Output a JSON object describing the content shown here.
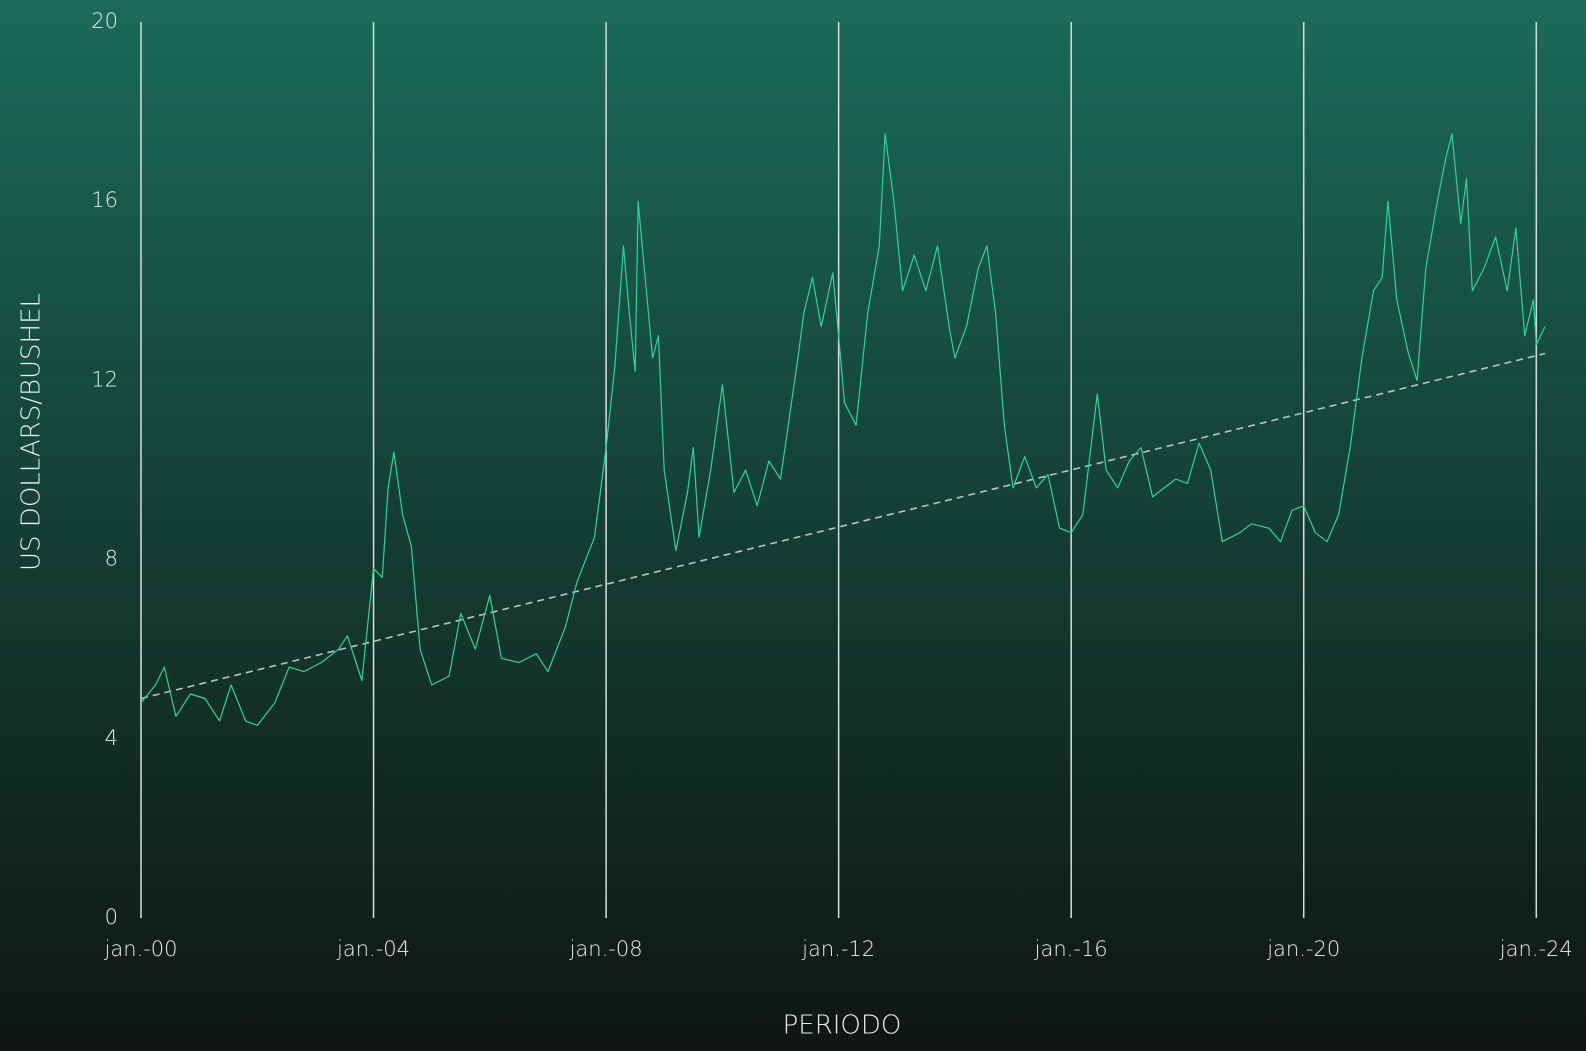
{
  "chart_data": {
    "type": "line",
    "y_label": "US DOLLARS/BUSHEL",
    "x_label": "PERIODO",
    "xlim": [
      2000,
      2024.15
    ],
    "ylim": [
      0,
      20
    ],
    "yticks": [
      0,
      4,
      8,
      12,
      16,
      20
    ],
    "xticks": [
      {
        "value": 2000,
        "label": "jan.-00"
      },
      {
        "value": 2004,
        "label": "jan.-04"
      },
      {
        "value": 2008,
        "label": "jan.-08"
      },
      {
        "value": 2012,
        "label": "jan.-12"
      },
      {
        "value": 2016,
        "label": "jan.-16"
      },
      {
        "value": 2020,
        "label": "jan.-20"
      },
      {
        "value": 2024,
        "label": "jan.-24"
      }
    ],
    "grid": "x",
    "x": [
      2000.0,
      2000.25,
      2000.4,
      2000.6,
      2000.85,
      2001.1,
      2001.35,
      2001.55,
      2001.8,
      2002.0,
      2002.3,
      2002.55,
      2002.8,
      2003.1,
      2003.4,
      2003.55,
      2003.8,
      2004.0,
      2004.15,
      2004.25,
      2004.35,
      2004.5,
      2004.65,
      2004.8,
      2005.0,
      2005.3,
      2005.5,
      2005.75,
      2006.0,
      2006.2,
      2006.5,
      2006.8,
      2007.0,
      2007.3,
      2007.5,
      2007.8,
      2008.0,
      2008.15,
      2008.3,
      2008.4,
      2008.5,
      2008.55,
      2008.8,
      2008.9,
      2009.0,
      2009.2,
      2009.4,
      2009.5,
      2009.6,
      2009.8,
      2010.0,
      2010.2,
      2010.4,
      2010.6,
      2010.8,
      2011.0,
      2011.3,
      2011.4,
      2011.55,
      2011.7,
      2011.9,
      2012.0,
      2012.1,
      2012.3,
      2012.5,
      2012.7,
      2012.8,
      2012.95,
      2013.1,
      2013.3,
      2013.5,
      2013.7,
      2013.9,
      2014.0,
      2014.2,
      2014.4,
      2014.55,
      2014.7,
      2014.85,
      2015.0,
      2015.2,
      2015.4,
      2015.6,
      2015.8,
      2016.0,
      2016.2,
      2016.45,
      2016.6,
      2016.8,
      2017.0,
      2017.2,
      2017.4,
      2017.6,
      2017.8,
      2018.0,
      2018.2,
      2018.4,
      2018.6,
      2018.9,
      2019.1,
      2019.4,
      2019.6,
      2019.8,
      2020.0,
      2020.2,
      2020.4,
      2020.6,
      2020.8,
      2021.0,
      2021.2,
      2021.35,
      2021.45,
      2021.6,
      2021.8,
      2021.95,
      2022.1,
      2022.3,
      2022.45,
      2022.55,
      2022.7,
      2022.8,
      2022.9,
      2023.1,
      2023.3,
      2023.5,
      2023.65,
      2023.8,
      2023.95,
      2024.0,
      2024.15
    ],
    "series": [
      {
        "color": "#2fd49a",
        "values": [
          4.8,
          5.2,
          5.6,
          4.5,
          5.0,
          4.9,
          4.4,
          5.2,
          4.4,
          4.3,
          4.8,
          5.6,
          5.5,
          5.7,
          6.0,
          6.3,
          5.3,
          7.8,
          7.6,
          9.6,
          10.4,
          9.0,
          8.3,
          6.0,
          5.2,
          5.4,
          6.8,
          6.0,
          7.2,
          5.8,
          5.7,
          5.9,
          5.5,
          6.5,
          7.5,
          8.5,
          10.5,
          12.3,
          15.0,
          13.5,
          12.2,
          16.0,
          12.5,
          13.0,
          10.0,
          8.2,
          9.5,
          10.5,
          8.5,
          10.0,
          11.9,
          9.5,
          10.0,
          9.2,
          10.2,
          9.8,
          12.5,
          13.5,
          14.3,
          13.2,
          14.4,
          13.0,
          11.5,
          11.0,
          13.5,
          15.0,
          17.5,
          16.0,
          14.0,
          14.8,
          14.0,
          15.0,
          13.2,
          12.5,
          13.2,
          14.5,
          15.0,
          13.5,
          11.0,
          9.6,
          10.3,
          9.6,
          9.9,
          8.7,
          8.6,
          9.0,
          11.7,
          10.0,
          9.6,
          10.2,
          10.5,
          9.4,
          9.6,
          9.8,
          9.7,
          10.6,
          10.0,
          8.4,
          8.6,
          8.8,
          8.7,
          8.4,
          9.1,
          9.2,
          8.6,
          8.4,
          9.0,
          10.5,
          12.5,
          14.0,
          14.3,
          16.0,
          13.8,
          12.6,
          12.0,
          14.5,
          16.0,
          17.0,
          17.5,
          15.5,
          16.5,
          14.0,
          14.5,
          15.2,
          14.0,
          15.4,
          13.0,
          13.8,
          12.8,
          13.2
        ]
      }
    ],
    "trend": {
      "x": [
        2000,
        2024.15
      ],
      "values": [
        4.9,
        12.6
      ],
      "color": "#b9c4c0",
      "dashed": true
    }
  }
}
